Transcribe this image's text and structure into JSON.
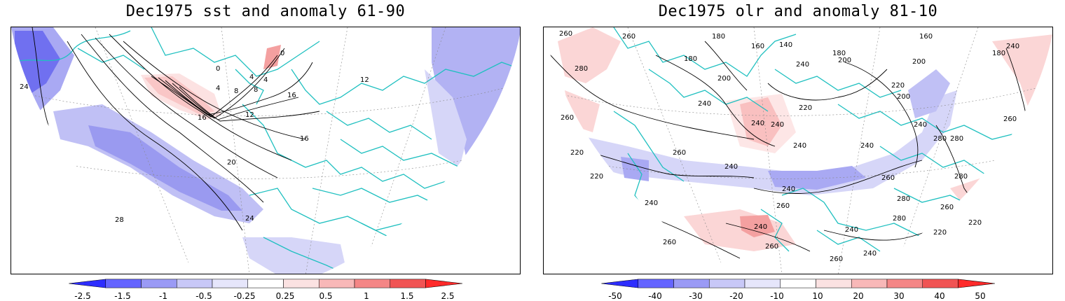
{
  "panels": {
    "left": {
      "title": "Dec1975 sst and anomaly 61-90",
      "contour_labels": [
        "24",
        "0",
        "4",
        "8",
        "4",
        "0",
        "4",
        "8",
        "12",
        "16",
        "12",
        "16",
        "20",
        "24",
        "28",
        "16"
      ],
      "colorbar": {
        "ticks": [
          "-2.5",
          "-1.5",
          "-1",
          "-0.5",
          "-0.25",
          "0.25",
          "0.5",
          "1",
          "1.5",
          "2.5"
        ],
        "colors": [
          "#2d2dff",
          "#6464ff",
          "#9a9af5",
          "#c8c8f7",
          "#e6e6fb",
          "#ffffff",
          "#fbe2e2",
          "#f8b8b8",
          "#f48686",
          "#f05454",
          "#ff2a2a"
        ]
      }
    },
    "right": {
      "title": "Dec1975 olr and anomaly 81-10",
      "contour_labels": [
        "260",
        "260",
        "180",
        "160",
        "140",
        "180",
        "240",
        "280",
        "180",
        "200",
        "160",
        "180",
        "200",
        "200",
        "240",
        "240",
        "200",
        "220",
        "220",
        "240",
        "260",
        "240",
        "240",
        "240",
        "280",
        "280",
        "260",
        "220",
        "220",
        "240",
        "260",
        "240",
        "240",
        "260",
        "280",
        "280",
        "240",
        "260",
        "280",
        "260",
        "240",
        "240",
        "220",
        "260",
        "260",
        "240",
        "260",
        "220"
      ],
      "colorbar": {
        "ticks": [
          "-50",
          "-40",
          "-30",
          "-20",
          "-10",
          "10",
          "20",
          "30",
          "40",
          "50"
        ],
        "colors": [
          "#2d2dff",
          "#6464ff",
          "#9a9af5",
          "#c8c8f7",
          "#e6e6fb",
          "#ffffff",
          "#fbe2e2",
          "#f8b8b8",
          "#f48686",
          "#f05454",
          "#ff2a2a"
        ]
      }
    }
  },
  "colors": {
    "coast": "#20c0c0",
    "contour": "#000000",
    "blue_light": "#d6d6f8",
    "blue_mid": "#a9a9f3",
    "blue_dark": "#7070f0",
    "red_light": "#fbd6d6",
    "red_mid": "#f4a0a0"
  }
}
